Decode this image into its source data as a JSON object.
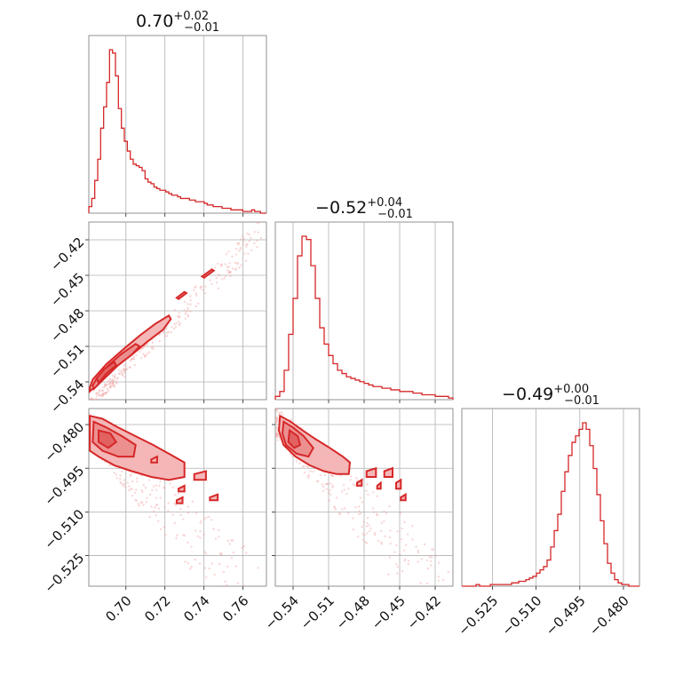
{
  "chart_data": {
    "type": "corner",
    "color": "#d62728",
    "parameters": [
      {
        "title_value": "0.70",
        "title_plus": "+0.02",
        "title_minus": "−0.01",
        "range": [
          0.681,
          0.772
        ],
        "ticks": [
          0.7,
          0.72,
          0.74,
          0.76
        ],
        "tick_labels": [
          "0.70",
          "0.72",
          "0.74",
          "0.76"
        ],
        "hist_edges": [
          0.681,
          0.772
        ],
        "hist_counts": [
          4,
          9,
          20,
          33,
          52,
          65,
          80,
          100,
          98,
          84,
          64,
          52,
          44,
          38,
          33,
          30,
          29,
          28,
          26,
          21,
          19,
          18,
          16,
          15,
          14,
          14,
          13,
          12,
          11,
          11,
          10,
          9,
          9,
          9,
          8,
          8,
          7,
          7,
          7,
          6,
          5,
          5,
          4,
          4,
          4,
          3,
          3,
          3,
          2,
          2,
          2,
          2,
          1,
          1,
          1,
          2,
          1,
          1,
          0,
          0
        ]
      },
      {
        "title_value": "−0.52",
        "title_plus": "+0.04",
        "title_minus": "−0.01",
        "range": [
          -0.555,
          -0.405
        ],
        "ticks": [
          -0.54,
          -0.51,
          -0.48,
          -0.45,
          -0.42
        ],
        "tick_labels": [
          "−0.54",
          "−0.51",
          "−0.48",
          "−0.45",
          "−0.42"
        ],
        "hist_edges": [
          -0.555,
          -0.405
        ],
        "hist_counts": [
          2,
          5,
          18,
          40,
          62,
          88,
          100,
          98,
          82,
          62,
          44,
          34,
          27,
          22,
          18,
          16,
          14,
          13,
          12,
          11,
          10,
          9,
          8,
          8,
          7,
          7,
          6,
          6,
          5,
          5,
          5,
          4,
          4,
          3,
          3,
          3,
          2,
          2,
          2,
          1
        ]
      },
      {
        "title_value": "−0.49",
        "title_plus": "+0.00",
        "title_minus": "−0.01",
        "range": [
          -0.5355,
          -0.4745
        ],
        "ticks": [
          -0.525,
          -0.51,
          -0.495,
          -0.48
        ],
        "tick_labels": [
          "−0.525",
          "−0.510",
          "−0.495",
          "−0.480"
        ],
        "hist_edges": [
          -0.5355,
          -0.4745
        ],
        "hist_counts": [
          0,
          0,
          0,
          0,
          1,
          0,
          0,
          0,
          1,
          1,
          1,
          1,
          1,
          1,
          2,
          2,
          3,
          3,
          4,
          5,
          6,
          8,
          10,
          12,
          16,
          24,
          34,
          44,
          58,
          70,
          80,
          88,
          92,
          96,
          100,
          96,
          86,
          72,
          56,
          40,
          26,
          14,
          8,
          4,
          2,
          1,
          1,
          0,
          0,
          0
        ]
      }
    ],
    "pairs": [
      {
        "row": 1,
        "col": 0,
        "trend": {
          "slope": 1.666,
          "intercept": -1.695,
          "spread": 0.0045
        },
        "levels": [
          {
            "fill": "#f4b6b6",
            "polygon": [
              [
                0.6815,
                -0.548
              ],
              [
                0.686,
                -0.541
              ],
              [
                0.694,
                -0.528
              ],
              [
                0.703,
                -0.517
              ],
              [
                0.711,
                -0.506
              ],
              [
                0.719,
                -0.496
              ],
              [
                0.723,
                -0.487
              ],
              [
                0.722,
                -0.484
              ],
              [
                0.715,
                -0.491
              ],
              [
                0.707,
                -0.501
              ],
              [
                0.699,
                -0.512
              ],
              [
                0.69,
                -0.525
              ],
              [
                0.683,
                -0.538
              ],
              [
                0.6815,
                -0.545
              ]
            ]
          },
          {
            "fill": "#ec8f8f",
            "polygon": [
              [
                0.6835,
                -0.546
              ],
              [
                0.689,
                -0.537
              ],
              [
                0.696,
                -0.526
              ],
              [
                0.703,
                -0.517
              ],
              [
                0.707,
                -0.51
              ],
              [
                0.705,
                -0.508
              ],
              [
                0.698,
                -0.516
              ],
              [
                0.691,
                -0.526
              ],
              [
                0.685,
                -0.537
              ],
              [
                0.683,
                -0.543
              ]
            ]
          },
          {
            "fill": "#e26161",
            "polygon": [
              [
                0.686,
                -0.541
              ],
              [
                0.69,
                -0.533
              ],
              [
                0.695,
                -0.526
              ],
              [
                0.694,
                -0.523
              ],
              [
                0.689,
                -0.529
              ],
              [
                0.685,
                -0.537
              ]
            ]
          }
        ],
        "islands": [
          [
            [
              0.74,
              -0.452
            ],
            [
              0.745,
              -0.446
            ],
            [
              0.744,
              -0.445
            ],
            [
              0.739,
              -0.451
            ]
          ],
          [
            [
              0.727,
              -0.47
            ],
            [
              0.731,
              -0.465
            ],
            [
              0.73,
              -0.464
            ],
            [
              0.726,
              -0.469
            ]
          ]
        ]
      },
      {
        "row": 2,
        "col": 0,
        "trend": {
          "slope": -0.7,
          "intercept": -0.0045,
          "spread": 0.0055
        },
        "levels": [
          {
            "fill": "#f4b6b6",
            "polygon": [
              [
                0.6815,
                -0.477
              ],
              [
                0.688,
                -0.478
              ],
              [
                0.696,
                -0.481
              ],
              [
                0.705,
                -0.484
              ],
              [
                0.714,
                -0.487
              ],
              [
                0.722,
                -0.49
              ],
              [
                0.73,
                -0.493
              ],
              [
                0.73,
                -0.498
              ],
              [
                0.722,
                -0.499
              ],
              [
                0.713,
                -0.498
              ],
              [
                0.703,
                -0.496
              ],
              [
                0.694,
                -0.494
              ],
              [
                0.686,
                -0.491
              ],
              [
                0.6815,
                -0.489
              ]
            ]
          },
          {
            "fill": "#ec8f8f",
            "polygon": [
              [
                0.6835,
                -0.479
              ],
              [
                0.69,
                -0.481
              ],
              [
                0.698,
                -0.484
              ],
              [
                0.705,
                -0.487
              ],
              [
                0.704,
                -0.491
              ],
              [
                0.696,
                -0.491
              ],
              [
                0.688,
                -0.489
              ],
              [
                0.683,
                -0.486
              ]
            ]
          },
          {
            "fill": "#e26161",
            "polygon": [
              [
                0.686,
                -0.482
              ],
              [
                0.692,
                -0.483
              ],
              [
                0.695,
                -0.486
              ],
              [
                0.691,
                -0.488
              ],
              [
                0.686,
                -0.486
              ]
            ]
          }
        ],
        "islands": [
          [
            [
              0.735,
              -0.497
            ],
            [
              0.741,
              -0.496
            ],
            [
              0.741,
              -0.499
            ],
            [
              0.735,
              -0.499
            ]
          ],
          [
            [
              0.727,
              -0.502
            ],
            [
              0.73,
              -0.501
            ],
            [
              0.73,
              -0.503
            ],
            [
              0.727,
              -0.503
            ]
          ],
          [
            [
              0.743,
              -0.505
            ],
            [
              0.747,
              -0.504
            ],
            [
              0.747,
              -0.506
            ],
            [
              0.743,
              -0.506
            ]
          ],
          [
            [
              0.726,
              -0.506
            ],
            [
              0.729,
              -0.505
            ],
            [
              0.729,
              -0.507
            ],
            [
              0.726,
              -0.507
            ]
          ],
          [
            [
              0.713,
              -0.492
            ],
            [
              0.716,
              -0.491
            ],
            [
              0.716,
              -0.493
            ],
            [
              0.713,
              -0.493
            ]
          ]
        ]
      },
      {
        "row": 2,
        "col": 1,
        "trend": {
          "slope": -0.42,
          "intercept": -0.712,
          "spread": 0.0055
        },
        "levels": [
          {
            "fill": "#f4b6b6",
            "polygon": [
              [
                -0.551,
                -0.477
              ],
              [
                -0.542,
                -0.479
              ],
              [
                -0.532,
                -0.482
              ],
              [
                -0.521,
                -0.485
              ],
              [
                -0.509,
                -0.488
              ],
              [
                -0.498,
                -0.491
              ],
              [
                -0.492,
                -0.493
              ],
              [
                -0.493,
                -0.497
              ],
              [
                -0.503,
                -0.497
              ],
              [
                -0.514,
                -0.496
              ],
              [
                -0.526,
                -0.494
              ],
              [
                -0.538,
                -0.491
              ],
              [
                -0.548,
                -0.487
              ],
              [
                -0.552,
                -0.482
              ]
            ]
          },
          {
            "fill": "#ec8f8f",
            "polygon": [
              [
                -0.548,
                -0.479
              ],
              [
                -0.54,
                -0.481
              ],
              [
                -0.531,
                -0.484
              ],
              [
                -0.523,
                -0.488
              ],
              [
                -0.527,
                -0.491
              ],
              [
                -0.537,
                -0.49
              ],
              [
                -0.546,
                -0.487
              ],
              [
                -0.549,
                -0.483
              ]
            ]
          },
          {
            "fill": "#e26161",
            "polygon": [
              [
                -0.543,
                -0.482
              ],
              [
                -0.536,
                -0.484
              ],
              [
                -0.534,
                -0.487
              ],
              [
                -0.539,
                -0.488
              ],
              [
                -0.544,
                -0.486
              ]
            ]
          }
        ],
        "islands": [
          [
            [
              -0.478,
              -0.496
            ],
            [
              -0.47,
              -0.495
            ],
            [
              -0.47,
              -0.498
            ],
            [
              -0.478,
              -0.498
            ]
          ],
          [
            [
              -0.463,
              -0.496
            ],
            [
              -0.456,
              -0.495
            ],
            [
              -0.456,
              -0.498
            ],
            [
              -0.463,
              -0.498
            ]
          ],
          [
            [
              -0.486,
              -0.5
            ],
            [
              -0.482,
              -0.499
            ],
            [
              -0.482,
              -0.501
            ],
            [
              -0.486,
              -0.501
            ]
          ],
          [
            [
              -0.453,
              -0.5
            ],
            [
              -0.449,
              -0.499
            ],
            [
              -0.449,
              -0.502
            ],
            [
              -0.453,
              -0.502
            ]
          ],
          [
            [
              -0.449,
              -0.505
            ],
            [
              -0.445,
              -0.504
            ],
            [
              -0.445,
              -0.506
            ],
            [
              -0.449,
              -0.506
            ]
          ],
          [
            [
              -0.469,
              -0.501
            ],
            [
              -0.466,
              -0.5
            ],
            [
              -0.466,
              -0.502
            ],
            [
              -0.469,
              -0.502
            ]
          ]
        ]
      }
    ]
  }
}
